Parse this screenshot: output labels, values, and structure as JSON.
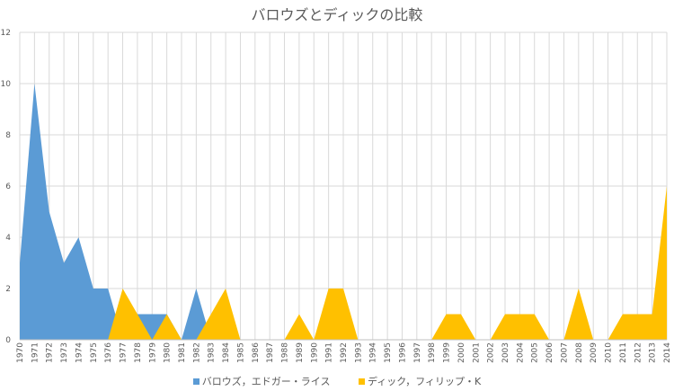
{
  "chart_data": {
    "type": "area",
    "title": "バロウズとディックの比較",
    "x": [
      1970,
      1971,
      1972,
      1973,
      1974,
      1975,
      1976,
      1977,
      1978,
      1979,
      1980,
      1981,
      1982,
      1983,
      1984,
      1985,
      1986,
      1987,
      1988,
      1989,
      1990,
      1991,
      1992,
      1993,
      1994,
      1995,
      1996,
      1997,
      1998,
      1999,
      2000,
      2001,
      2002,
      2003,
      2004,
      2005,
      2006,
      2007,
      2008,
      2009,
      2010,
      2011,
      2012,
      2013,
      2014
    ],
    "ylim": [
      0,
      12
    ],
    "yticks": [
      0,
      2,
      4,
      6,
      8,
      10,
      12
    ],
    "grid": true,
    "legend_position": "bottom",
    "series": [
      {
        "name": "バロウズ，エドガー・ライス",
        "color": "#5b9bd5",
        "values": [
          3,
          10,
          5,
          3,
          4,
          2,
          2,
          0,
          1,
          1,
          1,
          0,
          2,
          0,
          0,
          0,
          0,
          0,
          0,
          0,
          0,
          0,
          0,
          0,
          0,
          0,
          0,
          0,
          0,
          0,
          0,
          0,
          0,
          0,
          0,
          0,
          0,
          0,
          0,
          0,
          0,
          0,
          0,
          0,
          0
        ]
      },
      {
        "name": "ディック，フィリップ・K",
        "color": "#ffc000",
        "values": [
          0,
          0,
          0,
          0,
          0,
          0,
          0,
          2,
          1,
          0,
          1,
          0,
          0,
          1,
          2,
          0,
          0,
          0,
          0,
          1,
          0,
          2,
          2,
          0,
          0,
          0,
          0,
          0,
          0,
          1,
          1,
          0,
          0,
          1,
          1,
          1,
          0,
          0,
          2,
          0,
          0,
          1,
          1,
          1,
          6
        ]
      }
    ]
  }
}
